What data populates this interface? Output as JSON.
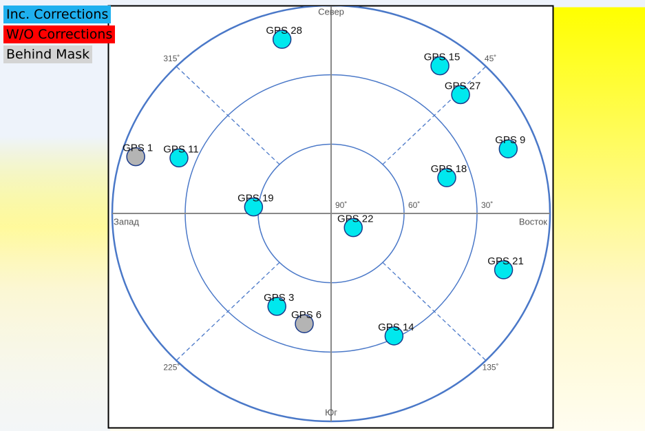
{
  "chart_data": {
    "type": "skyplot",
    "rlim": [
      90,
      0
    ],
    "rticks": [
      {
        "value": 90,
        "label": "90˚"
      },
      {
        "value": 60,
        "label": "60˚"
      },
      {
        "value": 30,
        "label": "30˚"
      }
    ],
    "direction_labels": [
      "Север",
      "Восток",
      "Юг",
      "Запад"
    ],
    "azimuth_ticks": [
      {
        "value": 45,
        "label": "45˚"
      },
      {
        "value": 135,
        "label": "135˚"
      },
      {
        "value": 225,
        "label": "225˚"
      },
      {
        "value": 315,
        "label": "315˚"
      }
    ],
    "series": [
      {
        "name": "Inc. Corrections",
        "color": "#00e8ee",
        "legend_color": "#1fb0ef",
        "points": [
          {
            "label": "GPS 28",
            "azimuth": 345,
            "elevation": 12
          },
          {
            "label": "GPS 15",
            "azimuth": 35,
            "elevation": 12
          },
          {
            "label": "GPS 27",
            "azimuth": 46,
            "elevation": 16
          },
          {
            "label": "GPS 9",
            "azimuth": 69,
            "elevation": 12
          },
          {
            "label": "GPS 18",
            "azimuth": 72,
            "elevation": 40
          },
          {
            "label": "GPS 22",
            "azimuth": 124,
            "elevation": 79
          },
          {
            "label": "GPS 19",
            "azimuth": 275,
            "elevation": 58
          },
          {
            "label": "GPS 11",
            "azimuth": 291,
            "elevation": 23
          },
          {
            "label": "GPS 21",
            "azimuth": 109,
            "elevation": 15
          },
          {
            "label": "GPS 3",
            "azimuth": 209,
            "elevation": 44
          },
          {
            "label": "GPS 14",
            "azimuth": 154,
            "elevation": 31
          }
        ]
      },
      {
        "name": "W/O Corrections",
        "color": "#ff0000",
        "legend_color": "#ff0000",
        "points": []
      },
      {
        "name": "Behind Mask",
        "color": "#b4b4b4",
        "legend_color": "#d4d4d4",
        "points": [
          {
            "label": "GPS 1",
            "azimuth": 287,
            "elevation": 6
          },
          {
            "label": "GPS 6",
            "azimuth": 193,
            "elevation": 41
          }
        ]
      }
    ]
  }
}
